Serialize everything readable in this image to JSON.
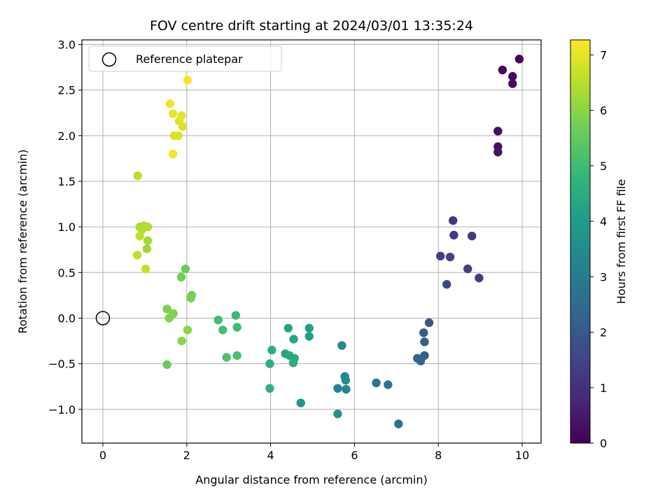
{
  "chart_data": {
    "type": "scatter",
    "title": "FOV centre drift starting at 2024/03/01 13:35:24",
    "xlabel": "Angular distance from reference (arcmin)",
    "ylabel": "Rotation from reference (arcmin)",
    "xlim": [
      -0.5,
      10.45
    ],
    "ylim": [
      -1.37,
      3.05
    ],
    "xticks": [
      0,
      2,
      4,
      6,
      8,
      10
    ],
    "yticks": [
      -1.0,
      -0.5,
      0.0,
      0.5,
      1.0,
      1.5,
      2.0,
      2.5,
      3.0
    ],
    "xtick_labels": [
      "0",
      "2",
      "4",
      "6",
      "8",
      "10"
    ],
    "ytick_labels": [
      "−1.0",
      "−0.5",
      "0.0",
      "0.5",
      "1.0",
      "1.5",
      "2.0",
      "2.5",
      "3.0"
    ],
    "grid": true,
    "legend": {
      "position": "top-left",
      "entries": [
        "Reference platepar"
      ]
    },
    "reference_point": {
      "x": 0.0,
      "y": 0.0
    },
    "colorbar": {
      "label": "Hours from first FF file",
      "colormap": "viridis",
      "range": [
        0,
        7.27
      ],
      "ticks": [
        0,
        1,
        2,
        3,
        4,
        5,
        6,
        7
      ],
      "tick_labels": [
        "0",
        "1",
        "2",
        "3",
        "4",
        "5",
        "6",
        "7"
      ]
    },
    "points": [
      {
        "x": 9.93,
        "y": 2.84,
        "c": 0.05
      },
      {
        "x": 9.53,
        "y": 2.72,
        "c": 0.1
      },
      {
        "x": 9.77,
        "y": 2.65,
        "c": 0.15
      },
      {
        "x": 9.77,
        "y": 2.57,
        "c": 0.2
      },
      {
        "x": 9.42,
        "y": 2.05,
        "c": 0.25
      },
      {
        "x": 9.42,
        "y": 1.88,
        "c": 0.3
      },
      {
        "x": 9.42,
        "y": 1.82,
        "c": 0.35
      },
      {
        "x": 8.35,
        "y": 1.07,
        "c": 1.2
      },
      {
        "x": 8.37,
        "y": 0.91,
        "c": 1.25
      },
      {
        "x": 8.8,
        "y": 0.9,
        "c": 1.3
      },
      {
        "x": 8.05,
        "y": 0.68,
        "c": 1.45
      },
      {
        "x": 8.28,
        "y": 0.67,
        "c": 1.5
      },
      {
        "x": 8.7,
        "y": 0.54,
        "c": 1.4
      },
      {
        "x": 8.97,
        "y": 0.44,
        "c": 1.35
      },
      {
        "x": 8.2,
        "y": 0.37,
        "c": 1.55
      },
      {
        "x": 7.78,
        "y": -0.05,
        "c": 2.0
      },
      {
        "x": 7.65,
        "y": -0.16,
        "c": 2.1
      },
      {
        "x": 7.67,
        "y": -0.26,
        "c": 2.15
      },
      {
        "x": 7.67,
        "y": -0.41,
        "c": 2.2
      },
      {
        "x": 7.5,
        "y": -0.44,
        "c": 2.3
      },
      {
        "x": 7.58,
        "y": -0.47,
        "c": 2.35
      },
      {
        "x": 7.05,
        "y": -1.16,
        "c": 2.7
      },
      {
        "x": 6.52,
        "y": -0.71,
        "c": 2.9
      },
      {
        "x": 6.8,
        "y": -0.73,
        "c": 2.85
      },
      {
        "x": 5.7,
        "y": -0.3,
        "c": 3.5
      },
      {
        "x": 5.77,
        "y": -0.64,
        "c": 3.4
      },
      {
        "x": 5.79,
        "y": -0.68,
        "c": 3.45
      },
      {
        "x": 5.6,
        "y": -0.77,
        "c": 3.3
      },
      {
        "x": 5.8,
        "y": -0.78,
        "c": 3.35
      },
      {
        "x": 5.6,
        "y": -1.05,
        "c": 3.6
      },
      {
        "x": 4.72,
        "y": -0.93,
        "c": 3.85
      },
      {
        "x": 4.42,
        "y": -0.11,
        "c": 4.2
      },
      {
        "x": 4.92,
        "y": -0.11,
        "c": 4.1
      },
      {
        "x": 4.92,
        "y": -0.2,
        "c": 4.15
      },
      {
        "x": 4.55,
        "y": -0.23,
        "c": 4.25
      },
      {
        "x": 4.35,
        "y": -0.39,
        "c": 4.3
      },
      {
        "x": 4.45,
        "y": -0.41,
        "c": 4.35
      },
      {
        "x": 4.57,
        "y": -0.44,
        "c": 4.4
      },
      {
        "x": 4.54,
        "y": -0.49,
        "c": 4.45
      },
      {
        "x": 4.03,
        "y": -0.35,
        "c": 4.55
      },
      {
        "x": 3.98,
        "y": -0.5,
        "c": 4.6
      },
      {
        "x": 3.98,
        "y": -0.77,
        "c": 4.65
      },
      {
        "x": 3.17,
        "y": 0.03,
        "c": 4.95
      },
      {
        "x": 2.75,
        "y": -0.02,
        "c": 5.05
      },
      {
        "x": 3.2,
        "y": -0.1,
        "c": 5.0
      },
      {
        "x": 2.86,
        "y": -0.13,
        "c": 5.1
      },
      {
        "x": 3.2,
        "y": -0.41,
        "c": 5.15
      },
      {
        "x": 2.95,
        "y": -0.43,
        "c": 5.2
      },
      {
        "x": 1.97,
        "y": 0.54,
        "c": 5.6
      },
      {
        "x": 1.87,
        "y": 0.45,
        "c": 5.65
      },
      {
        "x": 2.12,
        "y": 0.25,
        "c": 5.7
      },
      {
        "x": 2.1,
        "y": 0.22,
        "c": 5.75
      },
      {
        "x": 1.53,
        "y": 0.1,
        "c": 5.8
      },
      {
        "x": 1.68,
        "y": 0.05,
        "c": 5.85
      },
      {
        "x": 1.58,
        "y": 0.0,
        "c": 5.9
      },
      {
        "x": 2.02,
        "y": -0.13,
        "c": 5.95
      },
      {
        "x": 1.88,
        "y": -0.25,
        "c": 6.0
      },
      {
        "x": 1.53,
        "y": -0.51,
        "c": 5.55
      },
      {
        "x": 0.83,
        "y": 1.56,
        "c": 6.5
      },
      {
        "x": 0.88,
        "y": 1.0,
        "c": 6.3
      },
      {
        "x": 0.98,
        "y": 1.01,
        "c": 6.35
      },
      {
        "x": 1.07,
        "y": 1.0,
        "c": 6.4
      },
      {
        "x": 0.93,
        "y": 0.97,
        "c": 6.45
      },
      {
        "x": 0.88,
        "y": 0.9,
        "c": 6.55
      },
      {
        "x": 1.07,
        "y": 0.85,
        "c": 6.25
      },
      {
        "x": 1.05,
        "y": 0.76,
        "c": 6.2
      },
      {
        "x": 0.82,
        "y": 0.69,
        "c": 6.6
      },
      {
        "x": 1.02,
        "y": 0.54,
        "c": 6.65
      },
      {
        "x": 2.02,
        "y": 2.61,
        "c": 7.2
      },
      {
        "x": 1.6,
        "y": 2.35,
        "c": 7.1
      },
      {
        "x": 1.67,
        "y": 2.24,
        "c": 7.05
      },
      {
        "x": 1.88,
        "y": 2.22,
        "c": 7.0
      },
      {
        "x": 1.82,
        "y": 2.16,
        "c": 6.95
      },
      {
        "x": 1.9,
        "y": 2.1,
        "c": 6.9
      },
      {
        "x": 1.7,
        "y": 2.0,
        "c": 6.85
      },
      {
        "x": 1.8,
        "y": 2.0,
        "c": 6.88
      },
      {
        "x": 1.67,
        "y": 1.8,
        "c": 7.15
      }
    ]
  }
}
